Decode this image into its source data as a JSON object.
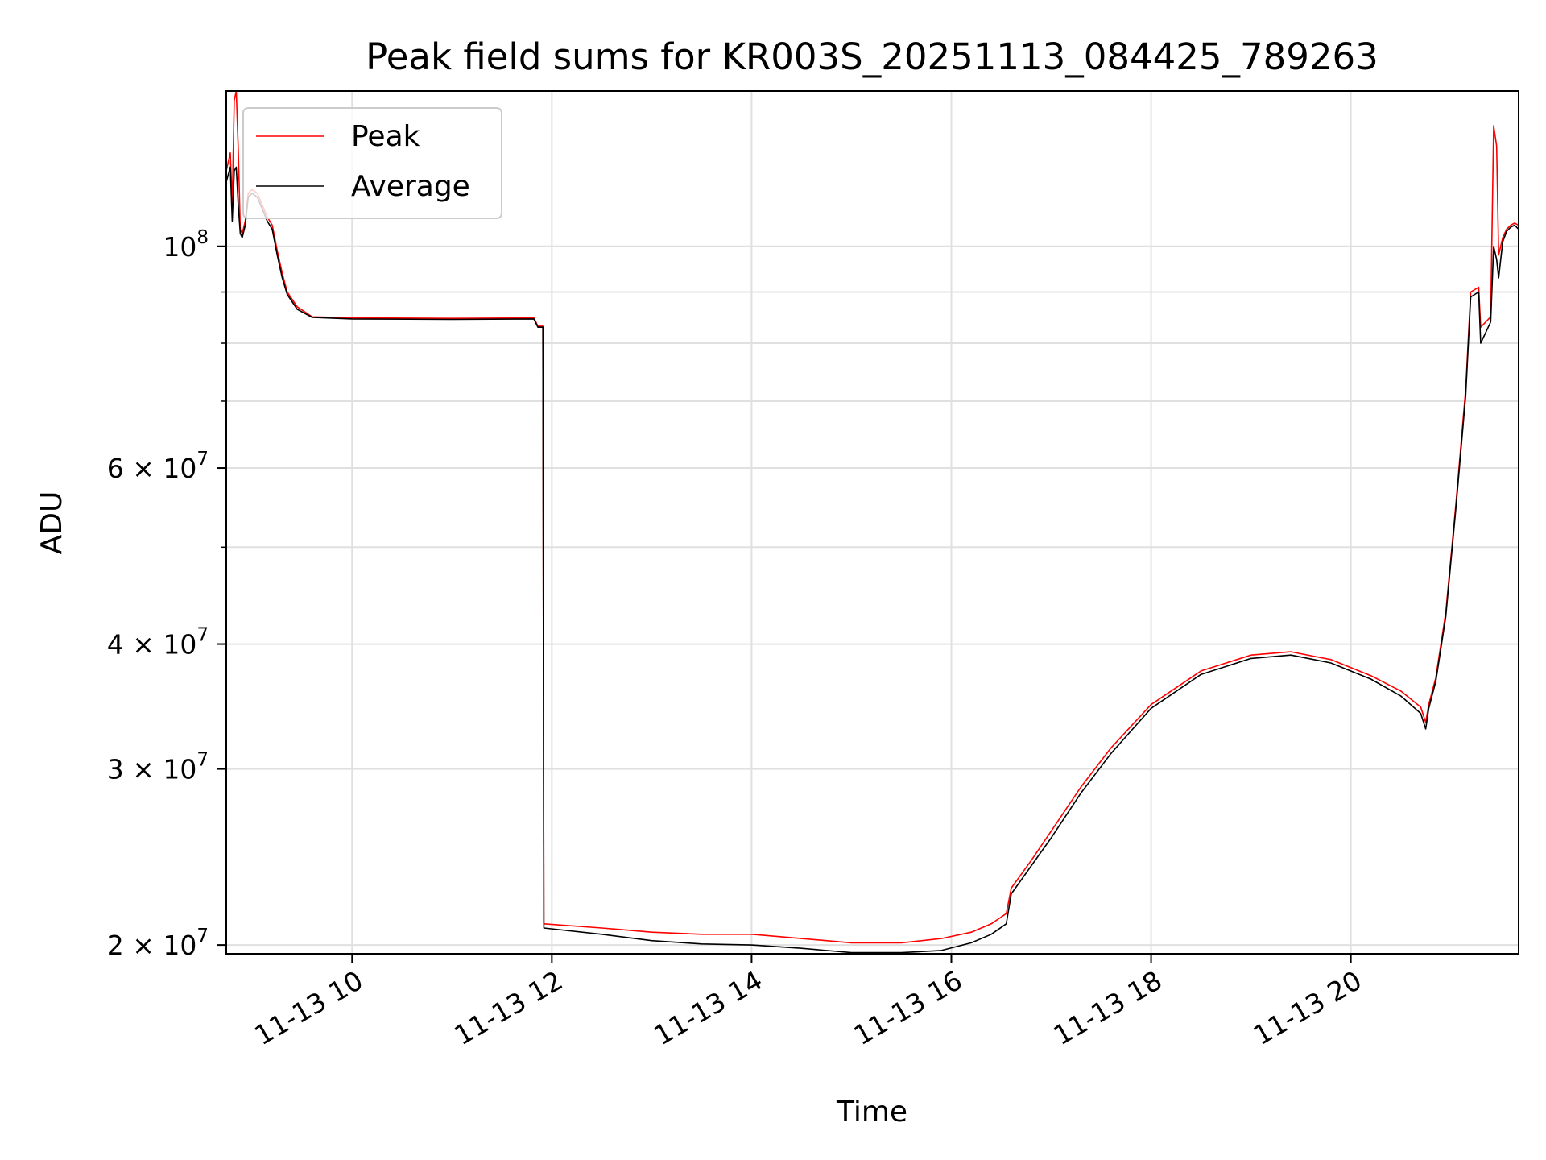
{
  "chart_data": {
    "type": "line",
    "title": "Peak field sums for KR003S_20251113_084425_789263",
    "xlabel": "Time",
    "ylabel": "ADU",
    "yscale": "log",
    "ylim": [
      19600000,
      143000000
    ],
    "xlim_hours": [
      8.74,
      21.68
    ],
    "grid": true,
    "legend_position": "upper-left",
    "x_ticks": [
      {
        "hour": 10,
        "label": "11-13 10"
      },
      {
        "hour": 12,
        "label": "11-13 12"
      },
      {
        "hour": 14,
        "label": "11-13 14"
      },
      {
        "hour": 16,
        "label": "11-13 16"
      },
      {
        "hour": 18,
        "label": "11-13 18"
      },
      {
        "hour": 20,
        "label": "11-13 20"
      }
    ],
    "y_major_ticks": [
      {
        "value": 20000000,
        "base": "2 × 10",
        "exp": "7"
      },
      {
        "value": 30000000,
        "base": "3 × 10",
        "exp": "7"
      },
      {
        "value": 40000000,
        "base": "4 × 10",
        "exp": "7"
      },
      {
        "value": 60000000,
        "base": "6 × 10",
        "exp": "7"
      },
      {
        "value": 100000000,
        "base": "10",
        "exp": "8"
      }
    ],
    "y_minor_ticks": [
      50000000,
      70000000,
      80000000,
      90000000
    ],
    "series": [
      {
        "name": "Peak",
        "color": "#ff0000",
        "points": [
          [
            8.74,
            119000000
          ],
          [
            8.78,
            124000000
          ],
          [
            8.8,
            110000000
          ],
          [
            8.82,
            140000000
          ],
          [
            8.84,
            143000000
          ],
          [
            8.86,
            125000000
          ],
          [
            8.88,
            104000000
          ],
          [
            8.9,
            103000000
          ],
          [
            8.93,
            106000000
          ],
          [
            8.96,
            113000000
          ],
          [
            9.0,
            114000000
          ],
          [
            9.05,
            113000000
          ],
          [
            9.1,
            110000000
          ],
          [
            9.15,
            107000000
          ],
          [
            9.2,
            105000000
          ],
          [
            9.25,
            99000000
          ],
          [
            9.3,
            94000000
          ],
          [
            9.35,
            90000000
          ],
          [
            9.45,
            87000000
          ],
          [
            9.6,
            85000000
          ],
          [
            10.0,
            84800000
          ],
          [
            11.0,
            84700000
          ],
          [
            11.82,
            84800000
          ],
          [
            11.86,
            83200000
          ],
          [
            11.91,
            83200000
          ],
          [
            11.92,
            21000000
          ],
          [
            12.5,
            20800000
          ],
          [
            13.0,
            20600000
          ],
          [
            13.5,
            20500000
          ],
          [
            14.0,
            20500000
          ],
          [
            14.5,
            20300000
          ],
          [
            15.0,
            20100000
          ],
          [
            15.5,
            20100000
          ],
          [
            15.9,
            20300000
          ],
          [
            16.2,
            20600000
          ],
          [
            16.4,
            21000000
          ],
          [
            16.55,
            21500000
          ],
          [
            16.6,
            22800000
          ],
          [
            16.8,
            24300000
          ],
          [
            17.0,
            26000000
          ],
          [
            17.3,
            28800000
          ],
          [
            17.6,
            31500000
          ],
          [
            18.0,
            34800000
          ],
          [
            18.5,
            37600000
          ],
          [
            19.0,
            39000000
          ],
          [
            19.4,
            39300000
          ],
          [
            19.8,
            38600000
          ],
          [
            20.2,
            37200000
          ],
          [
            20.5,
            35900000
          ],
          [
            20.7,
            34600000
          ],
          [
            20.75,
            33400000
          ],
          [
            20.78,
            34800000
          ],
          [
            20.85,
            37000000
          ],
          [
            20.95,
            43000000
          ],
          [
            21.05,
            55000000
          ],
          [
            21.15,
            72000000
          ],
          [
            21.2,
            90000000
          ],
          [
            21.28,
            91000000
          ],
          [
            21.3,
            83000000
          ],
          [
            21.4,
            85000000
          ],
          [
            21.43,
            132000000
          ],
          [
            21.46,
            126000000
          ],
          [
            21.48,
            98000000
          ],
          [
            21.52,
            102000000
          ],
          [
            21.56,
            104000000
          ],
          [
            21.6,
            105000000
          ],
          [
            21.64,
            105500000
          ],
          [
            21.68,
            105000000
          ]
        ]
      },
      {
        "name": "Average",
        "color": "#000000",
        "points": [
          [
            8.74,
            116000000
          ],
          [
            8.78,
            120000000
          ],
          [
            8.8,
            106000000
          ],
          [
            8.82,
            119000000
          ],
          [
            8.84,
            120000000
          ],
          [
            8.86,
            110000000
          ],
          [
            8.88,
            103000000
          ],
          [
            8.9,
            102000000
          ],
          [
            8.93,
            105000000
          ],
          [
            8.96,
            112000000
          ],
          [
            9.0,
            113000000
          ],
          [
            9.05,
            112000000
          ],
          [
            9.1,
            109000000
          ],
          [
            9.15,
            106000000
          ],
          [
            9.2,
            104000000
          ],
          [
            9.25,
            98000000
          ],
          [
            9.3,
            93000000
          ],
          [
            9.35,
            89500000
          ],
          [
            9.45,
            86500000
          ],
          [
            9.6,
            84900000
          ],
          [
            10.0,
            84600000
          ],
          [
            11.0,
            84500000
          ],
          [
            11.82,
            84600000
          ],
          [
            11.86,
            83000000
          ],
          [
            11.91,
            83000000
          ],
          [
            11.92,
            20800000
          ],
          [
            12.5,
            20500000
          ],
          [
            13.0,
            20200000
          ],
          [
            13.5,
            20050000
          ],
          [
            14.0,
            20000000
          ],
          [
            14.5,
            19850000
          ],
          [
            15.0,
            19650000
          ],
          [
            15.5,
            19650000
          ],
          [
            15.9,
            19750000
          ],
          [
            16.2,
            20100000
          ],
          [
            16.4,
            20500000
          ],
          [
            16.55,
            21000000
          ],
          [
            16.6,
            22500000
          ],
          [
            16.8,
            24000000
          ],
          [
            17.0,
            25600000
          ],
          [
            17.3,
            28400000
          ],
          [
            17.6,
            31100000
          ],
          [
            18.0,
            34500000
          ],
          [
            18.5,
            37300000
          ],
          [
            19.0,
            38700000
          ],
          [
            19.4,
            39000000
          ],
          [
            19.8,
            38300000
          ],
          [
            20.2,
            36900000
          ],
          [
            20.5,
            35500000
          ],
          [
            20.7,
            34100000
          ],
          [
            20.75,
            32900000
          ],
          [
            20.78,
            34500000
          ],
          [
            20.85,
            36700000
          ],
          [
            20.95,
            42600000
          ],
          [
            21.05,
            54500000
          ],
          [
            21.15,
            71000000
          ],
          [
            21.2,
            89000000
          ],
          [
            21.28,
            90000000
          ],
          [
            21.3,
            80000000
          ],
          [
            21.4,
            84000000
          ],
          [
            21.43,
            100000000
          ],
          [
            21.46,
            97000000
          ],
          [
            21.48,
            93000000
          ],
          [
            21.52,
            101000000
          ],
          [
            21.56,
            103500000
          ],
          [
            21.6,
            104500000
          ],
          [
            21.64,
            105000000
          ],
          [
            21.68,
            104000000
          ]
        ]
      }
    ]
  }
}
